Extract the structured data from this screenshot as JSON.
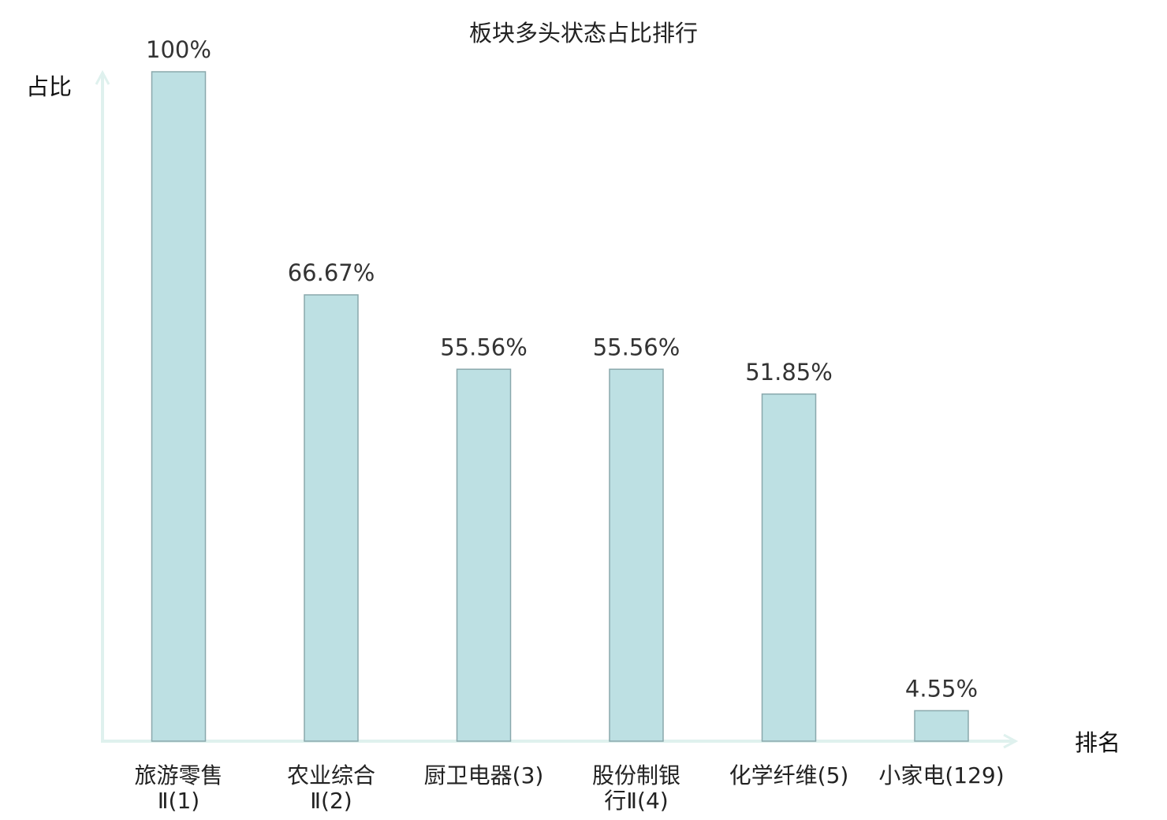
{
  "chart_data": {
    "type": "bar",
    "title": "板块多头状态占比排行",
    "ylabel": "占比",
    "xlabel": "排名",
    "ylim": [
      0,
      100
    ],
    "grid": false,
    "categories": [
      [
        "旅游零售",
        "Ⅱ(1)"
      ],
      [
        "农业综合",
        "Ⅱ(2)"
      ],
      [
        "厨卫电器(3)"
      ],
      [
        "股份制银",
        "行Ⅱ(4)"
      ],
      [
        "化学纤维(5)"
      ],
      [
        "小家电(129)"
      ]
    ],
    "values": [
      100,
      66.67,
      55.56,
      55.56,
      51.85,
      4.55
    ],
    "value_labels": [
      "100%",
      "66.67%",
      "55.56%",
      "55.56%",
      "51.85%",
      "4.55%"
    ],
    "highlight_index": 5,
    "colors": {
      "bar_fill": "#bde0e3",
      "bar_stroke": "#8aa8ac",
      "axis": "#dff1ee",
      "highlight_text": "#e8231f",
      "text": "#222222"
    }
  }
}
